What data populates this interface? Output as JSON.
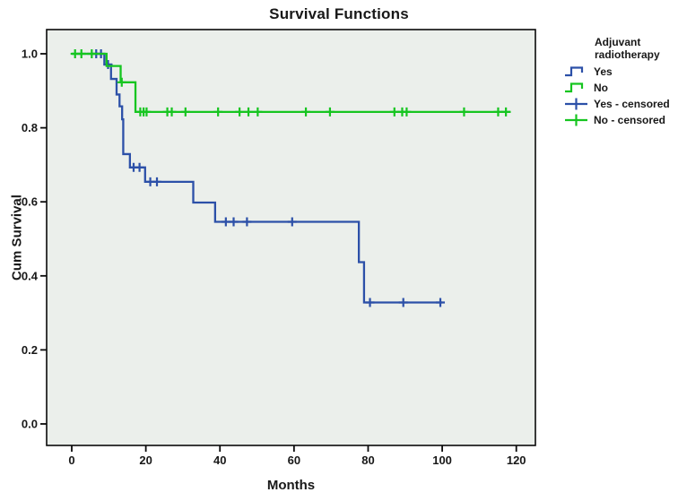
{
  "title": "Survival Functions",
  "axes": {
    "x_label": "Months",
    "y_label": "Cum Survival"
  },
  "legend": {
    "title": "Adjuvant radiotherapy",
    "items": [
      {
        "label": "Yes",
        "glyph": "step",
        "series": 0
      },
      {
        "label": "No",
        "glyph": "step",
        "series": 1
      },
      {
        "label": "Yes - censored",
        "glyph": "censor",
        "series": 0
      },
      {
        "label": "No - censored",
        "glyph": "censor",
        "series": 1
      }
    ]
  },
  "colors": {
    "yes_blue": "#2C50A8",
    "no_green": "#16C520",
    "plot_bg": "#EBEFEB",
    "frame": "#0a0a0a",
    "text": "#181818"
  },
  "chart_data": {
    "type": "line",
    "subtype": "kaplan-meier-step",
    "title": "Survival Functions",
    "xlabel": "Months",
    "ylabel": "Cum Survival",
    "xlim": [
      -7,
      125
    ],
    "ylim": [
      -0.06,
      1.065
    ],
    "x_ticks": [
      0,
      20,
      40,
      60,
      80,
      100,
      120
    ],
    "y_ticks": [
      0.0,
      0.2,
      0.4,
      0.6,
      0.8,
      1.0
    ],
    "grid": false,
    "legend_position": "right",
    "series": [
      {
        "name": "Yes",
        "color": "#2C50A8",
        "start": [
          0,
          1.0
        ],
        "steps": [
          [
            8.8,
            0.971
          ],
          [
            10.6,
            0.932
          ],
          [
            12.1,
            0.89
          ],
          [
            12.9,
            0.858
          ],
          [
            13.6,
            0.823
          ],
          [
            13.9,
            0.729
          ],
          [
            15.7,
            0.693
          ],
          [
            19.8,
            0.654
          ],
          [
            32.8,
            0.598
          ],
          [
            38.7,
            0.546
          ],
          [
            77.5,
            0.437
          ],
          [
            78.9,
            0.328
          ]
        ],
        "end_x": 100,
        "censored": [
          [
            6.6,
            1.0
          ],
          [
            7.9,
            1.0
          ],
          [
            9.8,
            0.971
          ],
          [
            16.7,
            0.693
          ],
          [
            18.3,
            0.693
          ],
          [
            21.2,
            0.654
          ],
          [
            23.0,
            0.654
          ],
          [
            41.6,
            0.546
          ],
          [
            43.7,
            0.546
          ],
          [
            47.3,
            0.546
          ],
          [
            59.5,
            0.546
          ],
          [
            80.5,
            0.328
          ],
          [
            89.5,
            0.328
          ],
          [
            99.5,
            0.328
          ]
        ]
      },
      {
        "name": "No",
        "color": "#16C520",
        "start": [
          0,
          1.0
        ],
        "steps": [
          [
            9.4,
            0.967
          ],
          [
            13.2,
            0.923
          ],
          [
            17.2,
            0.843
          ]
        ],
        "end_x": 118.5,
        "censored": [
          [
            0.9,
            1.0
          ],
          [
            2.6,
            1.0
          ],
          [
            5.4,
            1.0
          ],
          [
            13.5,
            0.923
          ],
          [
            18.5,
            0.843
          ],
          [
            19.4,
            0.843
          ],
          [
            20.2,
            0.843
          ],
          [
            25.8,
            0.843
          ],
          [
            27.0,
            0.843
          ],
          [
            30.7,
            0.843
          ],
          [
            39.5,
            0.843
          ],
          [
            45.3,
            0.843
          ],
          [
            47.7,
            0.843
          ],
          [
            50.2,
            0.843
          ],
          [
            63.2,
            0.843
          ],
          [
            69.7,
            0.843
          ],
          [
            87.1,
            0.843
          ],
          [
            89.2,
            0.843
          ],
          [
            90.4,
            0.843
          ],
          [
            105.9,
            0.843
          ],
          [
            115.1,
            0.843
          ],
          [
            117.2,
            0.843
          ]
        ]
      }
    ]
  }
}
